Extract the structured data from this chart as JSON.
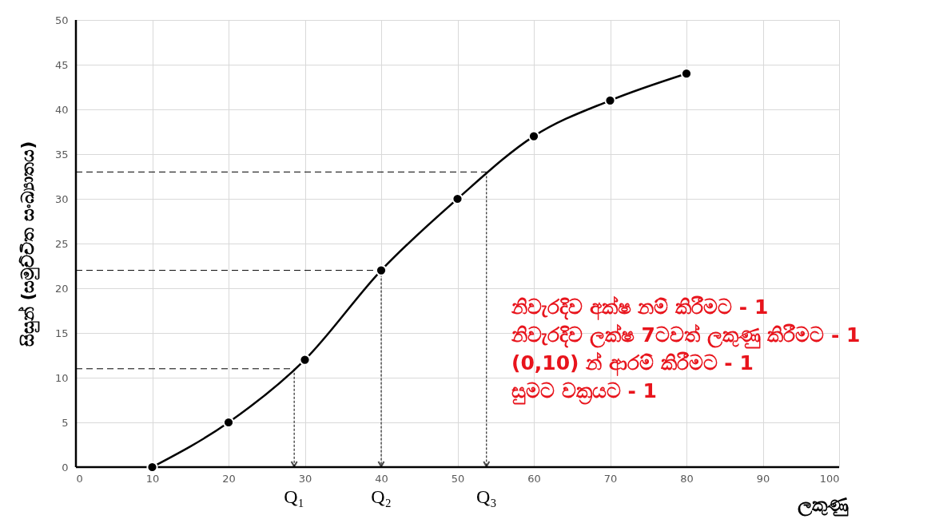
{
  "chart_data": {
    "type": "line",
    "xlabel": "ලකුණු",
    "ylabel": "සිසුන් (සමුච්චිත සංඛ්‍යාතය)",
    "x": [
      10,
      20,
      30,
      40,
      50,
      60,
      70,
      80
    ],
    "series": [
      {
        "color": "#000000",
        "values": [
          0,
          5,
          12,
          22,
          30,
          37,
          41,
          44
        ]
      }
    ],
    "xlim": [
      0,
      100
    ],
    "ylim": [
      0,
      50
    ],
    "xticks": [
      0,
      10,
      20,
      30,
      40,
      50,
      60,
      70,
      80,
      90,
      100
    ],
    "yticks": [
      0,
      5,
      10,
      15,
      20,
      25,
      30,
      35,
      40,
      45,
      50
    ],
    "ref_lines": [
      {
        "axis": "y",
        "value": 11,
        "line_style": "dashed"
      },
      {
        "axis": "y",
        "value": 22,
        "line_style": "dashed"
      },
      {
        "axis": "y",
        "value": 33,
        "line_style": "dashed"
      }
    ],
    "grid": true,
    "marker": "circle",
    "line_style": "solid",
    "annotations": [
      {
        "text": "Q₁",
        "x": 28.6,
        "y": 11
      },
      {
        "text": "Q₂",
        "x": 40,
        "y": 22
      },
      {
        "text": "Q₃",
        "x": 53.8,
        "y": 33
      },
      "නිවැරදිව අක්ෂ නම් කිරීමට - 1",
      "නිවැරදිව  ලක්ෂ  7ටවත් ලකුණු කිරීමට - 1",
      "(0,10) න් ආරම් කිරීමට - 1",
      "සුමට වක්‍රයට - 1"
    ]
  }
}
